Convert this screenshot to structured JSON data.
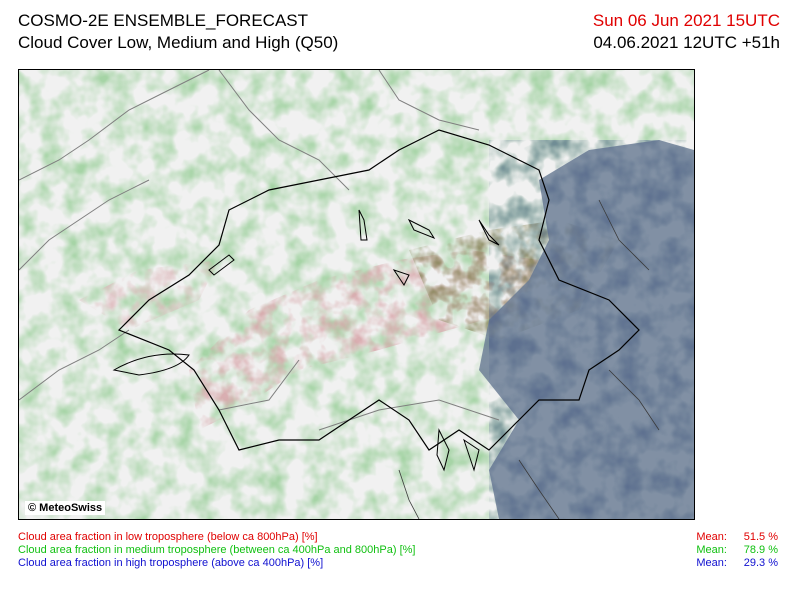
{
  "header": {
    "model": "COSMO-2E ENSEMBLE_FORECAST",
    "product": "Cloud Cover Low, Medium and High (Q50)",
    "valid_time": "Sun 06 Jun 2021 15UTC",
    "init_time": "04.06.2021 12UTC +51h"
  },
  "map": {
    "credit": "© MeteoSwiss"
  },
  "legend": [
    {
      "label": "Cloud area fraction in low troposphere (below ca 800hPa) [%]",
      "mean_label": "Mean:",
      "mean_value": "51.5 %",
      "color": "#e00000"
    },
    {
      "label": "Cloud area fraction in medium troposphere (between ca 400hPa and 800hPa) [%]",
      "mean_label": "Mean:",
      "mean_value": "78.9 %",
      "color": "#10c010"
    },
    {
      "label": "Cloud area fraction in high troposphere (above ca 400hPa) [%]",
      "mean_label": "Mean:",
      "mean_value": "29.3 %",
      "color": "#1010d0"
    }
  ],
  "colors": {
    "low_cloud": "#d9a6a6",
    "medium_cloud": "#8fc98f",
    "high_cloud": "#7f7fc0",
    "mixed_low_medium": "#8c8a60",
    "mixed_all": "#5b6f86"
  }
}
